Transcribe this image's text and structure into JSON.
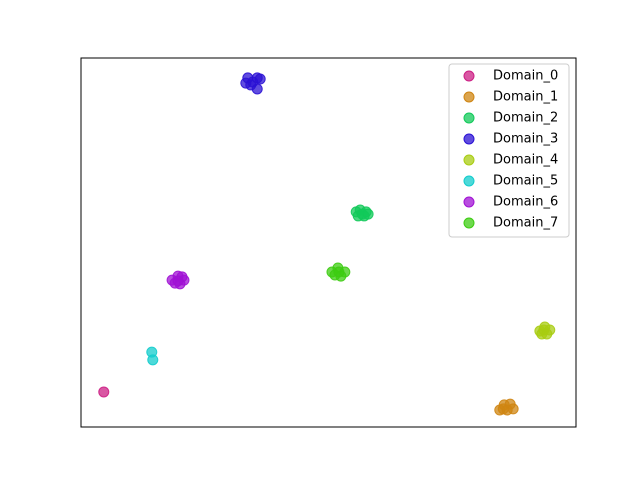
{
  "chart_data": {
    "type": "scatter",
    "xlim": [
      0,
      100
    ],
    "ylim": [
      0,
      100
    ],
    "legend": "upper right",
    "series": [
      {
        "name": "Domain_0",
        "color": "#cc1f84",
        "x": [
          4.6
        ],
        "y": [
          9.5
        ]
      },
      {
        "name": "Domain_1",
        "color": "#cf8512",
        "x": [
          84.6,
          85.5,
          86.7,
          87.3,
          86.1,
          85.3
        ],
        "y": [
          4.6,
          6.0,
          6.2,
          4.9,
          4.6,
          4.9
        ]
      },
      {
        "name": "Domain_2",
        "color": "#12c95a",
        "x": [
          55.6,
          56.4,
          57.6,
          57.2,
          56.0,
          56.8,
          58.0
        ],
        "y": [
          58.3,
          58.8,
          58.3,
          57.2,
          57.2,
          57.7,
          57.7
        ]
      },
      {
        "name": "Domain_3",
        "color": "#2b12d4",
        "x": [
          33.7,
          35.6,
          34.7,
          33.3,
          36.2,
          35.6,
          34.3
        ],
        "y": [
          94.6,
          94.6,
          93.5,
          93.2,
          94.3,
          91.6,
          92.7
        ]
      },
      {
        "name": "Domain_4",
        "color": "#a8cc12",
        "x": [
          92.7,
          93.7,
          94.7,
          93.1,
          94.1,
          93.5
        ],
        "y": [
          26.0,
          27.1,
          26.3,
          25.2,
          25.2,
          26.3
        ]
      },
      {
        "name": "Domain_5",
        "color": "#12cccc",
        "x": [
          14.3,
          14.5
        ],
        "y": [
          20.3,
          18.2
        ]
      },
      {
        "name": "Domain_6",
        "color": "#a012d4",
        "x": [
          18.4,
          19.6,
          20.8,
          20.0,
          19.0,
          20.4,
          19.6
        ],
        "y": [
          39.8,
          40.9,
          39.8,
          38.8,
          39.0,
          40.7,
          39.6
        ]
      },
      {
        "name": "Domain_7",
        "color": "#3dcc12",
        "x": [
          50.7,
          51.9,
          53.3,
          52.5,
          51.3,
          52.1
        ],
        "y": [
          42.0,
          43.1,
          42.0,
          40.9,
          41.2,
          42.0
        ]
      }
    ]
  }
}
